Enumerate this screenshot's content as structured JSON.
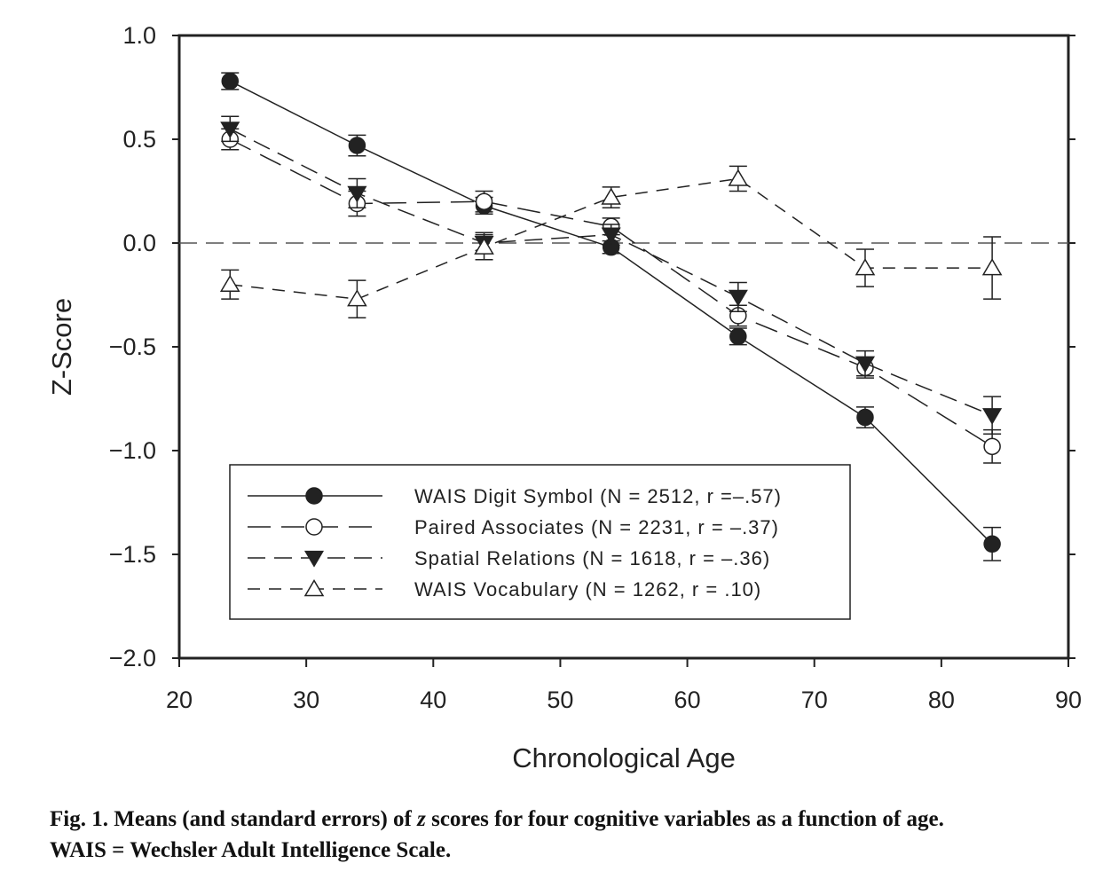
{
  "chart_data": {
    "type": "line",
    "xlabel": "Chronological Age",
    "ylabel": "Z-Score",
    "xlim": [
      20,
      90
    ],
    "ylim": [
      -2.0,
      1.0
    ],
    "xticks": [
      "20",
      "30",
      "40",
      "50",
      "60",
      "70",
      "80",
      "90"
    ],
    "yticks": [
      "1.0",
      "0.5",
      "0.0",
      "−0.5",
      "−1.0",
      "−1.5",
      "−2.0"
    ],
    "x": [
      24,
      34,
      44,
      54,
      64,
      74,
      84
    ],
    "reference_line": 0,
    "grid": false,
    "legend_position": "bottom-left",
    "series": [
      {
        "name": "WAIS Digit Symbol (N = 2512, r =–.57)",
        "marker": "filled-circle",
        "dash": "solid",
        "values": [
          0.78,
          0.47,
          0.18,
          -0.02,
          -0.45,
          -0.84,
          -1.45
        ],
        "errors": [
          0.04,
          0.05,
          0.04,
          0.03,
          0.04,
          0.05,
          0.08
        ]
      },
      {
        "name": "Paired Associates (N = 2231, r = –.37)",
        "marker": "open-circle",
        "dash": "long",
        "values": [
          0.5,
          0.19,
          0.2,
          0.08,
          -0.35,
          -0.6,
          -0.98
        ],
        "errors": [
          0.05,
          0.06,
          0.05,
          0.04,
          0.05,
          0.05,
          0.08
        ]
      },
      {
        "name": "Spatial Relations (N = 1618, r = –.36)",
        "marker": "filled-triangle-down",
        "dash": "medium",
        "values": [
          0.55,
          0.24,
          0.0,
          0.04,
          -0.26,
          -0.58,
          -0.83
        ],
        "errors": [
          0.06,
          0.07,
          0.05,
          0.05,
          0.07,
          0.06,
          0.09
        ]
      },
      {
        "name": "WAIS Vocabulary (N = 1262, r = .10)",
        "marker": "open-triangle-up",
        "dash": "short",
        "values": [
          -0.2,
          -0.27,
          -0.02,
          0.22,
          0.31,
          -0.12,
          -0.12
        ],
        "errors": [
          0.07,
          0.09,
          0.06,
          0.05,
          0.06,
          0.09,
          0.15
        ]
      }
    ]
  },
  "caption": {
    "fig_label": "Fig.  1.",
    "text_before_italic": "Means (and standard errors) of ",
    "italic": "z",
    "text_after_italic": " scores for four cognitive variables as a function of age.",
    "line2": "WAIS = Wechsler Adult Intelligence Scale."
  }
}
